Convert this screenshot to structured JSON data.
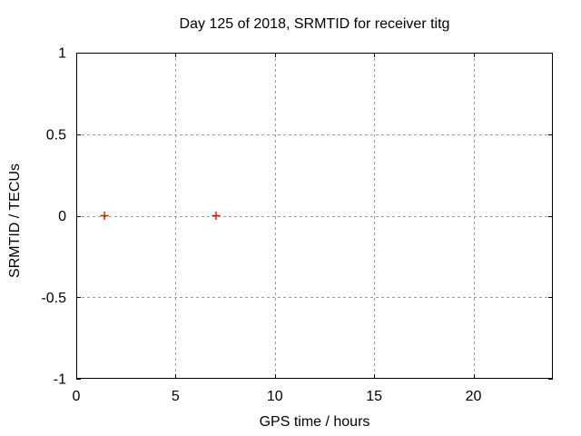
{
  "window": {
    "background": "#ffffff"
  },
  "chart_data": {
    "type": "scatter",
    "title": "Day 125 of 2018, SRMTID for receiver titg",
    "xlabel": "GPS time / hours",
    "ylabel": "SRMTID / TECUs",
    "xlim": [
      0,
      24
    ],
    "ylim": [
      -1,
      1
    ],
    "xticks": [
      0,
      5,
      10,
      15,
      20
    ],
    "xtick_labels": [
      "0",
      "5",
      "10",
      "15",
      "20"
    ],
    "yticks": [
      -1,
      -0.5,
      0,
      0.5,
      1
    ],
    "ytick_labels": [
      "-1",
      "-0.5",
      "0",
      "0.5",
      "1"
    ],
    "grid": true,
    "grid_style": "dashed",
    "legend": "none",
    "colors": {
      "background": "#ffffff",
      "border": "#000000",
      "grid": "#9e9e9e",
      "marker": "#ff0000"
    },
    "series": [
      {
        "name": "SRMTID",
        "marker": "plus",
        "color": "#ff0000",
        "points": [
          {
            "x": 1.42,
            "y": 0.0
          },
          {
            "x": 7.04,
            "y": 0.0
          }
        ]
      }
    ]
  }
}
